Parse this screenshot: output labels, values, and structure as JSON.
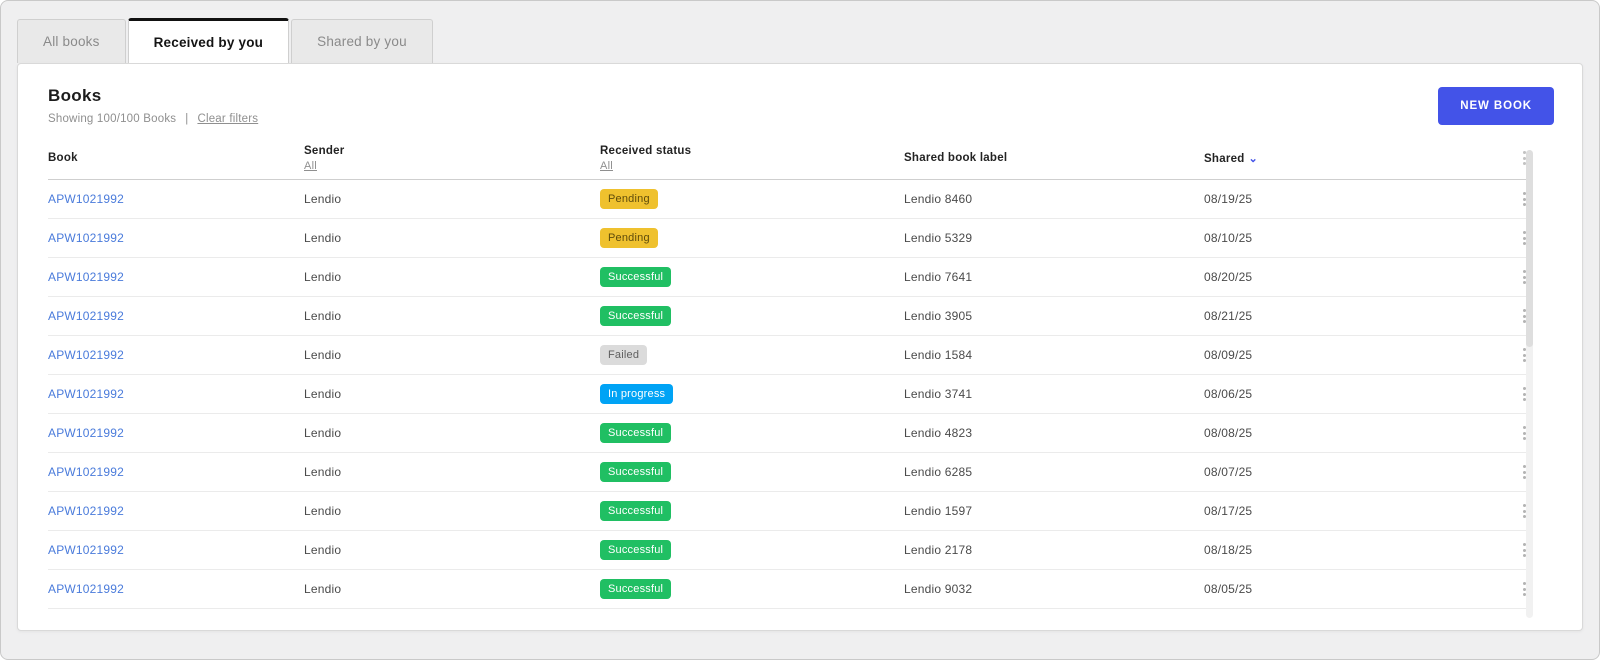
{
  "tabs": [
    {
      "label": "All books",
      "active": false
    },
    {
      "label": "Received by you",
      "active": true
    },
    {
      "label": "Shared by you",
      "active": false
    }
  ],
  "card": {
    "title": "Books",
    "subtitle": "Showing 100/100 Books",
    "subtitle_separator": "|",
    "clear_filters_label": "Clear filters",
    "new_book_label": "NEW BOOK"
  },
  "table": {
    "columns": [
      {
        "label": "Book"
      },
      {
        "label": "Sender",
        "filter": "All"
      },
      {
        "label": "Received status",
        "filter": "All"
      },
      {
        "label": "Shared book label"
      },
      {
        "label": "Shared",
        "sort": "desc"
      }
    ],
    "rows": [
      {
        "book": "APW1021992",
        "sender": "Lendio",
        "status": "Pending",
        "label": "Lendio 8460",
        "shared": "08/19/25"
      },
      {
        "book": "APW1021992",
        "sender": "Lendio",
        "status": "Pending",
        "label": "Lendio 5329",
        "shared": "08/10/25"
      },
      {
        "book": "APW1021992",
        "sender": "Lendio",
        "status": "Successful",
        "label": "Lendio 7641",
        "shared": "08/20/25"
      },
      {
        "book": "APW1021992",
        "sender": "Lendio",
        "status": "Successful",
        "label": "Lendio 3905",
        "shared": "08/21/25"
      },
      {
        "book": "APW1021992",
        "sender": "Lendio",
        "status": "Failed",
        "label": "Lendio 1584",
        "shared": "08/09/25"
      },
      {
        "book": "APW1021992",
        "sender": "Lendio",
        "status": "In progress",
        "label": "Lendio 3741",
        "shared": "08/06/25"
      },
      {
        "book": "APW1021992",
        "sender": "Lendio",
        "status": "Successful",
        "label": "Lendio 4823",
        "shared": "08/08/25"
      },
      {
        "book": "APW1021992",
        "sender": "Lendio",
        "status": "Successful",
        "label": "Lendio 6285",
        "shared": "08/07/25"
      },
      {
        "book": "APW1021992",
        "sender": "Lendio",
        "status": "Successful",
        "label": "Lendio 1597",
        "shared": "08/17/25"
      },
      {
        "book": "APW1021992",
        "sender": "Lendio",
        "status": "Successful",
        "label": "Lendio 2178",
        "shared": "08/18/25"
      },
      {
        "book": "APW1021992",
        "sender": "Lendio",
        "status": "Successful",
        "label": "Lendio 9032",
        "shared": "08/05/25"
      }
    ]
  },
  "status_styles": {
    "Pending": {
      "bg": "#EFC12E",
      "fg": "#5f4c0b"
    },
    "Successful": {
      "bg": "#20BF63",
      "fg": "#ffffff"
    },
    "Failed": {
      "bg": "#DBDBDB",
      "fg": "#5f5f5f"
    },
    "In progress": {
      "bg": "#00A3F5",
      "fg": "#ffffff"
    }
  },
  "icons": {
    "sort_caret": "⌄"
  },
  "colors": {
    "accent": "#4353E8",
    "link": "#4A7BDB"
  }
}
